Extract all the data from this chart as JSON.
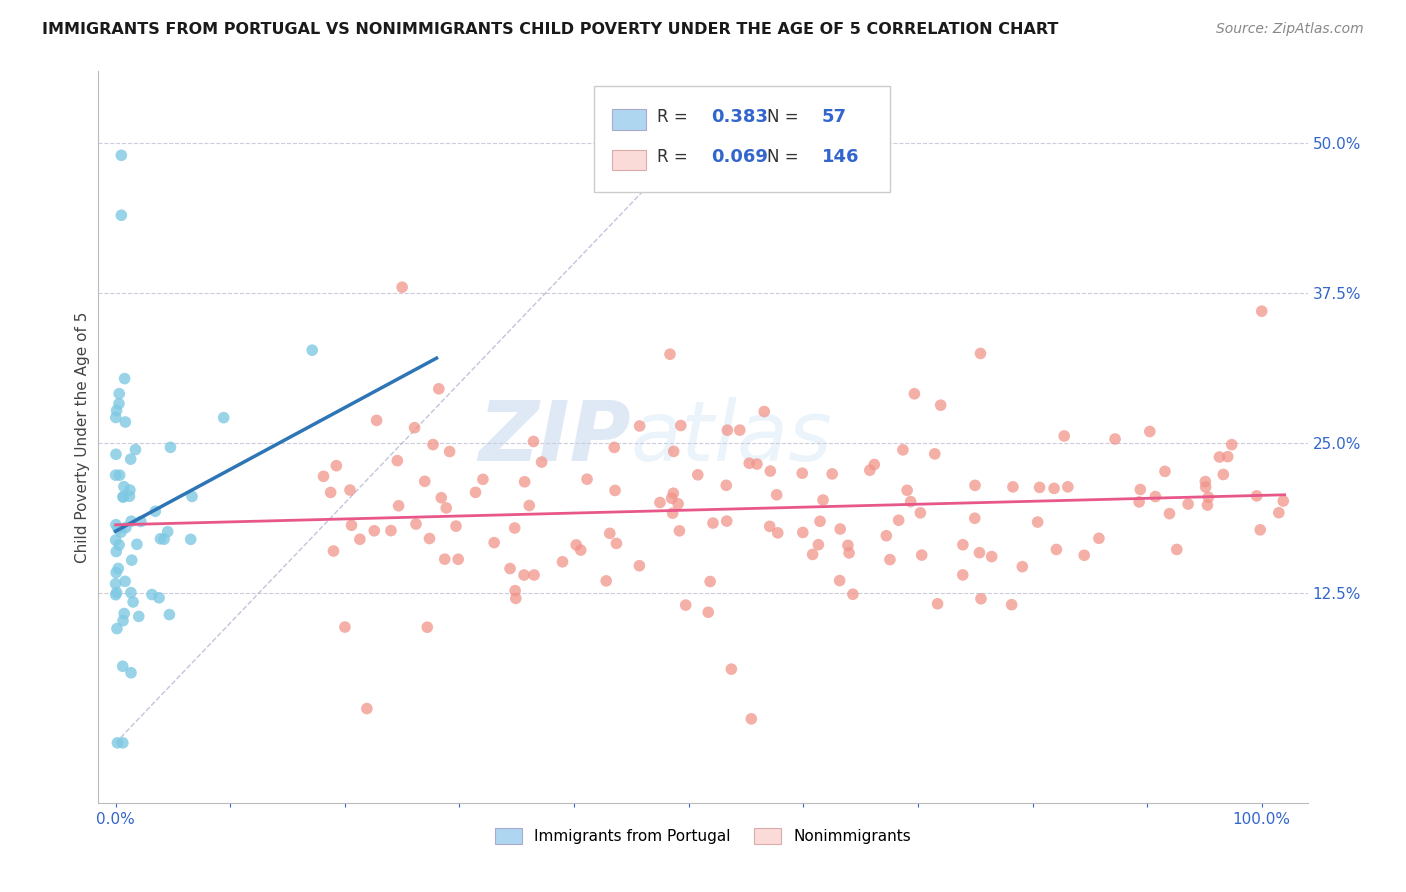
{
  "title": "IMMIGRANTS FROM PORTUGAL VS NONIMMIGRANTS CHILD POVERTY UNDER THE AGE OF 5 CORRELATION CHART",
  "source": "Source: ZipAtlas.com",
  "ylabel": "Child Poverty Under the Age of 5",
  "blue_color": "#7EC8E3",
  "blue_fill": "#AED6F1",
  "pink_color": "#F1948A",
  "pink_fill": "#FADBD8",
  "blue_line_color": "#2E75B6",
  "pink_line_color": "#E8578A",
  "legend_R_blue": "0.383",
  "legend_N_blue": "57",
  "legend_R_pink": "0.069",
  "legend_N_pink": "146",
  "label_color": "#3366CC",
  "grid_color": "#CCCCDD",
  "ref_line_color": "#AAAACC"
}
